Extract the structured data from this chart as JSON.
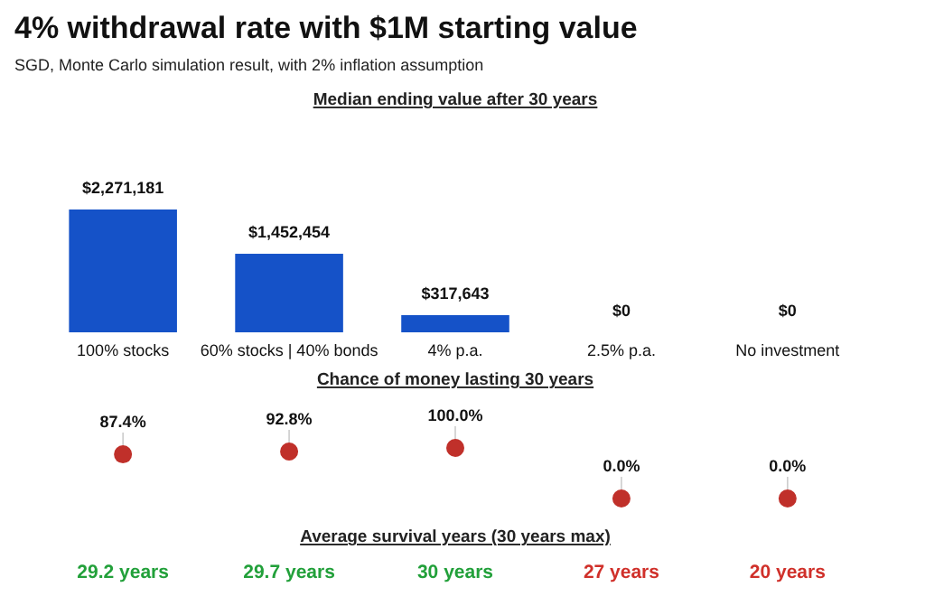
{
  "chart_data": [
    {
      "type": "bar",
      "title": "4% withdrawal rate with $1M starting value",
      "subtitle": "SGD, Monte Carlo simulation result, with 2% inflation assumption",
      "annotations": [
        "Median ending value after 30 years"
      ],
      "categories": [
        "100% stocks",
        "60% stocks | 40% bonds",
        "4% p.a.",
        "2.5% p.a.",
        "No investment"
      ],
      "values": [
        2271181,
        1452454,
        317643,
        0,
        0
      ],
      "value_labels": [
        "$2,271,181",
        "$1,452,454",
        "$317,643",
        "$0",
        "$0"
      ],
      "color": "#1552c8",
      "tick_labels": "x"
    },
    {
      "type": "scatter",
      "title": "Chance of money lasting 30 years",
      "categories": [
        null,
        null,
        null,
        null,
        null
      ],
      "values": [
        87.4,
        92.8,
        100.0,
        0.0,
        0.0
      ],
      "value_labels": [
        "87.4%",
        "92.8%",
        "100.0%",
        "0.0%",
        "0.0%"
      ],
      "color": "#c0302a",
      "marker": "circle"
    },
    {
      "type": "other",
      "title": "Average survival years (30 years max)",
      "categories": [
        null,
        null,
        null,
        null,
        null
      ],
      "values": [
        29.2,
        29.7,
        30,
        27,
        20
      ],
      "value_labels": [
        "29.2 years",
        "29.7 years",
        "30 years",
        "27 years",
        "20 years"
      ],
      "colors": [
        "#22a03a",
        "#22a03a",
        "#22a03a",
        "#d0302a",
        "#d0302a"
      ]
    }
  ]
}
